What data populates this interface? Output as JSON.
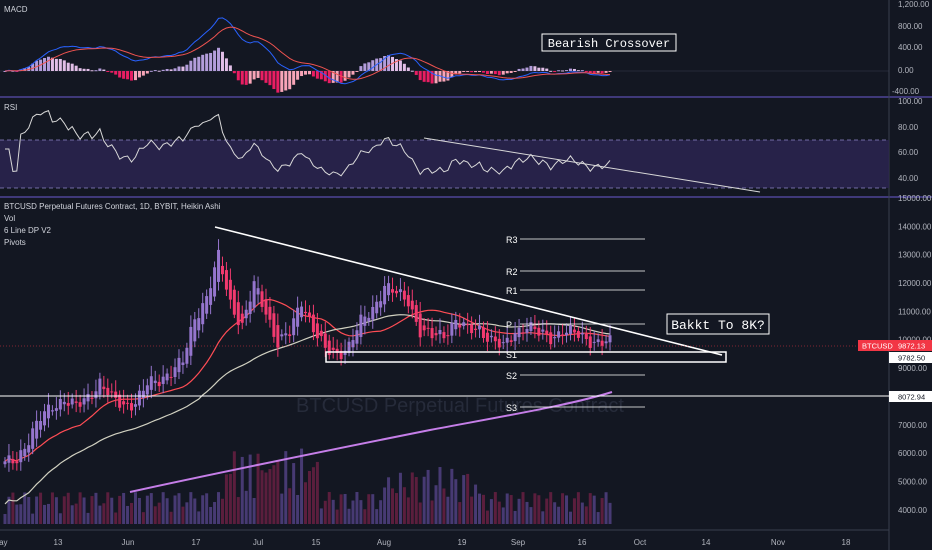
{
  "chart_data": {
    "type": "candlestick",
    "symbol_title": "BTCUSD Perpetual Futures Contract, 1D, BYBIT, Heikin Ashi",
    "indicator_labels": [
      "Vol",
      "6 Line DP V2",
      "Pivots"
    ],
    "watermark": "BTCUSD Perpetual Futures Contract",
    "price_axis": {
      "ticks": [
        4000,
        5000,
        6000,
        7000,
        8000,
        9000,
        10000,
        11000,
        12000,
        13000,
        14000,
        15000
      ],
      "range": [
        3500,
        15000
      ]
    },
    "date_axis": {
      "ticks": [
        "May",
        "13",
        "Jun",
        "17",
        "Jul",
        "15",
        "Aug",
        "19",
        "Sep",
        "16",
        "Oct",
        "14",
        "Nov",
        "18"
      ]
    },
    "price_tags": [
      {
        "label": "BTCUSD",
        "value": "9872.13",
        "color": "#f23645"
      },
      {
        "value": "9782.50",
        "color": "#ffffff"
      },
      {
        "value": "8072.94",
        "color": "#ffffff"
      }
    ],
    "pivots": [
      "R3",
      "R2",
      "R1",
      "P",
      "S1",
      "S2",
      "S3"
    ],
    "annotations": {
      "main": "Bakkt To 8K?",
      "macd": "Bearish Crossover"
    },
    "macd": {
      "title": "MACD",
      "ticks": [
        "1,200.00",
        "800.00",
        "400.00",
        "0.00",
        "-400.00"
      ]
    },
    "rsi": {
      "title": "RSI",
      "ticks": [
        "100.00",
        "80.00",
        "60.00",
        "40.00"
      ],
      "band": [
        30,
        70
      ]
    },
    "close_prices": [
      5600,
      5800,
      6500,
      7200,
      7700,
      7900,
      7600,
      8000,
      8500,
      7900,
      7700,
      7800,
      8400,
      8600,
      8900,
      9200,
      10800,
      11500,
      12900,
      11300,
      10500,
      11900,
      11000,
      9900,
      10200,
      11400,
      10400,
      9600,
      9500,
      9800,
      10600,
      11100,
      11900,
      11600,
      11400,
      10300,
      10100,
      10200,
      10700,
      10300,
      10400,
      10000,
      9700,
      10300,
      10500,
      10200,
      10100,
      10300,
      10200,
      10050,
      9900,
      9872
    ]
  },
  "colors": {
    "background": "#131722",
    "up": "#9575cd",
    "down": "#f23a6f",
    "text": "#d1d4dc",
    "ma_slow": "#d1d1c1",
    "ma_long": "#c57ee8",
    "ma_fast": "#ff4d55"
  }
}
